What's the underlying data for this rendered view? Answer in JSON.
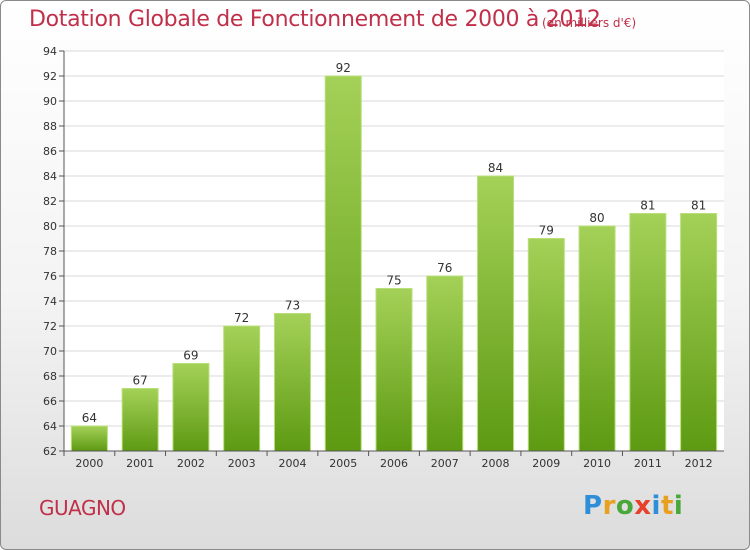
{
  "header": {
    "title": "Dotation Globale de Fonctionnement de 2000 à 2012",
    "subtitle": "(en milliers d'€)"
  },
  "footer": {
    "commune": "GUAGNO",
    "logo_letters": [
      "P",
      "r",
      "o",
      "x",
      "i",
      "t",
      "i"
    ]
  },
  "colors": {
    "title": "#c0304a",
    "bar_top": "#a4d158",
    "bar_bottom": "#5d9a12"
  },
  "chart_data": {
    "type": "bar",
    "categories": [
      "2000",
      "2001",
      "2002",
      "2003",
      "2004",
      "2005",
      "2006",
      "2007",
      "2008",
      "2009",
      "2010",
      "2011",
      "2012"
    ],
    "values": [
      64,
      67,
      69,
      72,
      73,
      92,
      75,
      76,
      84,
      79,
      80,
      81,
      81
    ],
    "title": "Dotation Globale de Fonctionnement de 2000 à 2012",
    "subtitle": "(en milliers d'€)",
    "xlabel": "",
    "ylabel": "",
    "ylim": [
      62,
      94
    ],
    "yticks": [
      62,
      64,
      66,
      68,
      70,
      72,
      74,
      76,
      78,
      80,
      82,
      84,
      86,
      88,
      90,
      92,
      94
    ],
    "grid": true,
    "data_labels": true
  }
}
